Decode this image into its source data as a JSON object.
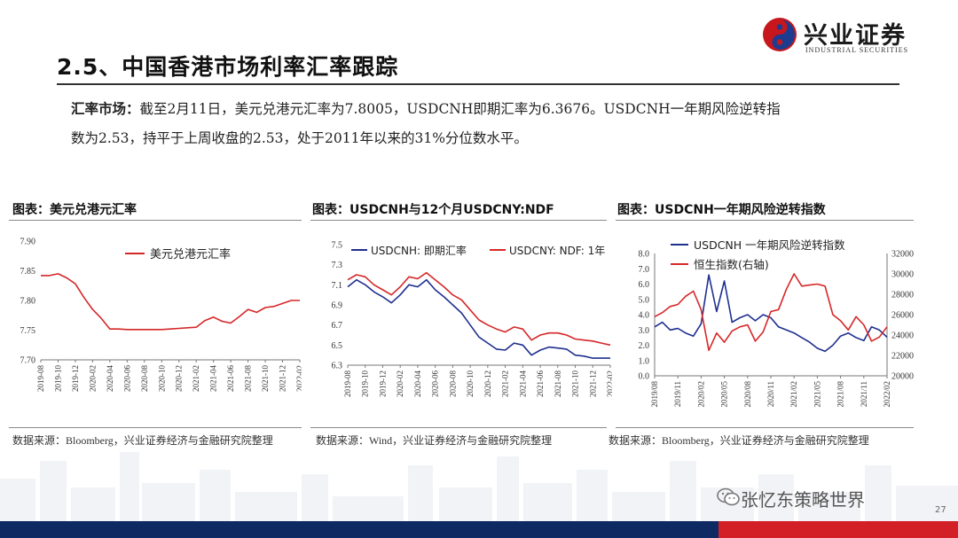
{
  "logo": {
    "name": "兴业证券",
    "sub": "INDUSTRIAL SECURITIES"
  },
  "title": "2.5、中国香港市场利率汇率跟踪",
  "paragraph": {
    "lead": "汇率市场：",
    "line1": "截至2月11日，美元兑港元汇率为7.8005，USDCNH即期汇率为6.3676。USDCNH一年期风险逆转指",
    "line2": "数为2.53，持平于上周收盘的2.53，处于2011年以来的31%分位数水平。"
  },
  "colors": {
    "red": "#d62728",
    "navy": "#1f2f8f",
    "footer_blue": "#0f2a63",
    "footer_red": "#d31f26"
  },
  "charts": [
    {
      "title": "图表：美元兑港元汇率",
      "source": "数据来源：Bloomberg，兴业证券经济与金融研究院整理"
    },
    {
      "title": "图表：USDCNH与12个月USDCNY:NDF",
      "source": "数据来源：Wind，兴业证券经济与金融研究院整理"
    },
    {
      "title": "图表：USDCNH一年期风险逆转指数",
      "source": "数据来源：Bloomberg，兴业证券经济与金融研究院整理"
    }
  ],
  "chart_data": [
    {
      "type": "line",
      "title": "",
      "ylim": [
        7.7,
        7.9
      ],
      "yticks": [
        "7.90",
        "7.85",
        "7.80",
        "7.75",
        "7.70"
      ],
      "xticks": [
        "2019-08",
        "2019-10",
        "2019-12",
        "2020-02",
        "2020-04",
        "2020-06",
        "2020-08",
        "2020-10",
        "2020-12",
        "2021-02",
        "2021-04",
        "2021-06",
        "2021-08",
        "2021-10",
        "2021-12",
        "2022-02"
      ],
      "legend": "top-center",
      "series": [
        {
          "name": "美元兑港元汇率",
          "color": "#d62728",
          "x": [
            "2019-08",
            "2019-09",
            "2019-10",
            "2019-11",
            "2019-12",
            "2020-01",
            "2020-02",
            "2020-03",
            "2020-04",
            "2020-05",
            "2020-06",
            "2020-07",
            "2020-08",
            "2020-09",
            "2020-10",
            "2020-11",
            "2020-12",
            "2021-01",
            "2021-02",
            "2021-03",
            "2021-04",
            "2021-05",
            "2021-06",
            "2021-07",
            "2021-08",
            "2021-09",
            "2021-10",
            "2021-11",
            "2021-12",
            "2022-01",
            "2022-02"
          ],
          "values": [
            7.842,
            7.842,
            7.845,
            7.838,
            7.828,
            7.805,
            7.785,
            7.77,
            7.752,
            7.752,
            7.751,
            7.751,
            7.751,
            7.751,
            7.751,
            7.752,
            7.753,
            7.754,
            7.755,
            7.766,
            7.772,
            7.765,
            7.762,
            7.773,
            7.785,
            7.78,
            7.788,
            7.79,
            7.795,
            7.8,
            7.8
          ]
        }
      ]
    },
    {
      "type": "line",
      "title": "",
      "ylim": [
        6.3,
        7.5
      ],
      "yticks": [
        "7.5",
        "7.3",
        "7.1",
        "6.9",
        "6.7",
        "6.5",
        "6.3"
      ],
      "xticks": [
        "2019-08",
        "2019-10",
        "2019-12",
        "2020-02",
        "2020-04",
        "2020-06",
        "2020-08",
        "2020-10",
        "2020-12",
        "2021-02",
        "2021-04",
        "2021-06",
        "2021-08",
        "2021-10",
        "2021-12",
        "2022-02"
      ],
      "legend": "top",
      "series": [
        {
          "name": "USDCNH: 即期汇率",
          "color": "#1f2f8f",
          "x": [
            "2019-08",
            "2019-09",
            "2019-10",
            "2019-11",
            "2019-12",
            "2020-01",
            "2020-02",
            "2020-03",
            "2020-04",
            "2020-05",
            "2020-06",
            "2020-07",
            "2020-08",
            "2020-09",
            "2020-10",
            "2020-11",
            "2020-12",
            "2021-01",
            "2021-02",
            "2021-03",
            "2021-04",
            "2021-05",
            "2021-06",
            "2021-07",
            "2021-08",
            "2021-09",
            "2021-10",
            "2021-11",
            "2021-12",
            "2022-01",
            "2022-02"
          ],
          "values": [
            7.08,
            7.15,
            7.1,
            7.03,
            6.98,
            6.92,
            7.0,
            7.1,
            7.08,
            7.15,
            7.05,
            6.98,
            6.9,
            6.82,
            6.7,
            6.58,
            6.52,
            6.46,
            6.45,
            6.52,
            6.5,
            6.4,
            6.45,
            6.48,
            6.47,
            6.46,
            6.4,
            6.39,
            6.37,
            6.37,
            6.37
          ]
        },
        {
          "name": "USDCNY: NDF: 1年",
          "color": "#d62728",
          "x": [
            "2019-08",
            "2019-09",
            "2019-10",
            "2019-11",
            "2019-12",
            "2020-01",
            "2020-02",
            "2020-03",
            "2020-04",
            "2020-05",
            "2020-06",
            "2020-07",
            "2020-08",
            "2020-09",
            "2020-10",
            "2020-11",
            "2020-12",
            "2021-01",
            "2021-02",
            "2021-03",
            "2021-04",
            "2021-05",
            "2021-06",
            "2021-07",
            "2021-08",
            "2021-09",
            "2021-10",
            "2021-11",
            "2021-12",
            "2022-01",
            "2022-02"
          ],
          "values": [
            7.15,
            7.2,
            7.18,
            7.1,
            7.05,
            7.0,
            7.08,
            7.18,
            7.16,
            7.22,
            7.15,
            7.08,
            7.0,
            6.95,
            6.85,
            6.75,
            6.7,
            6.66,
            6.63,
            6.68,
            6.66,
            6.55,
            6.6,
            6.62,
            6.62,
            6.6,
            6.56,
            6.55,
            6.54,
            6.52,
            6.5
          ]
        }
      ]
    },
    {
      "type": "line",
      "title": "",
      "ylim": [
        0.0,
        8.0
      ],
      "y2lim": [
        20000,
        32000
      ],
      "yticks": [
        "8.0",
        "7.0",
        "6.0",
        "5.0",
        "4.0",
        "3.0",
        "2.0",
        "1.0",
        "0.0"
      ],
      "y2ticks": [
        "32000",
        "30000",
        "28000",
        "26000",
        "24000",
        "22000",
        "20000"
      ],
      "xticks": [
        "2019/08",
        "2019/11",
        "2020/02",
        "2020/05",
        "2020/08",
        "2020/11",
        "2021/02",
        "2021/05",
        "2021/08",
        "2021/11",
        "2022/02"
      ],
      "legend": "top-left",
      "series": [
        {
          "name": "USDCNH 一年期风险逆转指数",
          "color": "#1f2f8f",
          "axis": "left",
          "x": [
            "2019/08",
            "2019/09",
            "2019/10",
            "2019/11",
            "2019/12",
            "2020/01",
            "2020/02",
            "2020/03",
            "2020/04",
            "2020/05",
            "2020/06",
            "2020/07",
            "2020/08",
            "2020/09",
            "2020/10",
            "2020/11",
            "2020/12",
            "2021/01",
            "2021/02",
            "2021/03",
            "2021/04",
            "2021/05",
            "2021/06",
            "2021/07",
            "2021/08",
            "2021/09",
            "2021/10",
            "2021/11",
            "2021/12",
            "2022/01",
            "2022/02"
          ],
          "values": [
            3.2,
            3.5,
            3.0,
            3.1,
            2.8,
            2.6,
            3.4,
            6.6,
            4.2,
            6.2,
            3.5,
            3.8,
            4.0,
            3.6,
            4.0,
            3.8,
            3.2,
            3.0,
            2.8,
            2.5,
            2.2,
            1.8,
            1.6,
            2.0,
            2.6,
            2.8,
            2.5,
            2.3,
            3.2,
            3.0,
            2.53
          ]
        },
        {
          "name": "恒生指数(右轴)",
          "color": "#d62728",
          "axis": "right",
          "x": [
            "2019/08",
            "2019/09",
            "2019/10",
            "2019/11",
            "2019/12",
            "2020/01",
            "2020/02",
            "2020/03",
            "2020/04",
            "2020/05",
            "2020/06",
            "2020/07",
            "2020/08",
            "2020/09",
            "2020/10",
            "2020/11",
            "2020/12",
            "2021/01",
            "2021/02",
            "2021/03",
            "2021/04",
            "2021/05",
            "2021/06",
            "2021/07",
            "2021/08",
            "2021/09",
            "2021/10",
            "2021/11",
            "2021/12",
            "2022/01",
            "2022/02"
          ],
          "values": [
            25800,
            26200,
            26800,
            27000,
            27800,
            28300,
            26500,
            22500,
            24200,
            23300,
            24400,
            24800,
            25000,
            23400,
            24300,
            26300,
            26500,
            28500,
            30000,
            28800,
            28900,
            29000,
            28800,
            26000,
            25400,
            24500,
            25800,
            25000,
            23400,
            23800,
            24800
          ]
        }
      ]
    }
  ],
  "watermark": "张忆东策略世界",
  "page_number": "27"
}
